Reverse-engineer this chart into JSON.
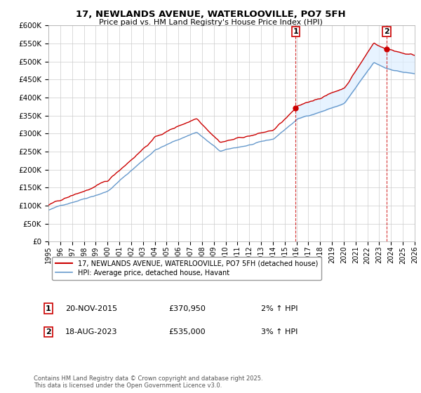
{
  "title": "17, NEWLANDS AVENUE, WATERLOOVILLE, PO7 5FH",
  "subtitle": "Price paid vs. HM Land Registry's House Price Index (HPI)",
  "legend_label_red": "17, NEWLANDS AVENUE, WATERLOOVILLE, PO7 5FH (detached house)",
  "legend_label_blue": "HPI: Average price, detached house, Havant",
  "annotation1_label": "1",
  "annotation1_date": "20-NOV-2015",
  "annotation1_price": "£370,950",
  "annotation1_hpi": "2% ↑ HPI",
  "annotation2_label": "2",
  "annotation2_date": "18-AUG-2023",
  "annotation2_price": "£535,000",
  "annotation2_hpi": "3% ↑ HPI",
  "footnote": "Contains HM Land Registry data © Crown copyright and database right 2025.\nThis data is licensed under the Open Government Licence v3.0.",
  "xmin": 1995,
  "xmax": 2026,
  "ymin": 0,
  "ymax": 600000,
  "yticks": [
    0,
    50000,
    100000,
    150000,
    200000,
    250000,
    300000,
    350000,
    400000,
    450000,
    500000,
    550000,
    600000
  ],
  "color_red": "#cc0000",
  "color_blue": "#6699cc",
  "color_fill": "#ddeeff",
  "background_plot": "#ffffff",
  "grid_color": "#cccccc",
  "annotation_marker_color": "#cc0000",
  "annotation_vline_color": "#cc0000",
  "ann1_x": 2015.917,
  "ann1_y": 370950,
  "ann2_x": 2023.625,
  "ann2_y": 535000
}
